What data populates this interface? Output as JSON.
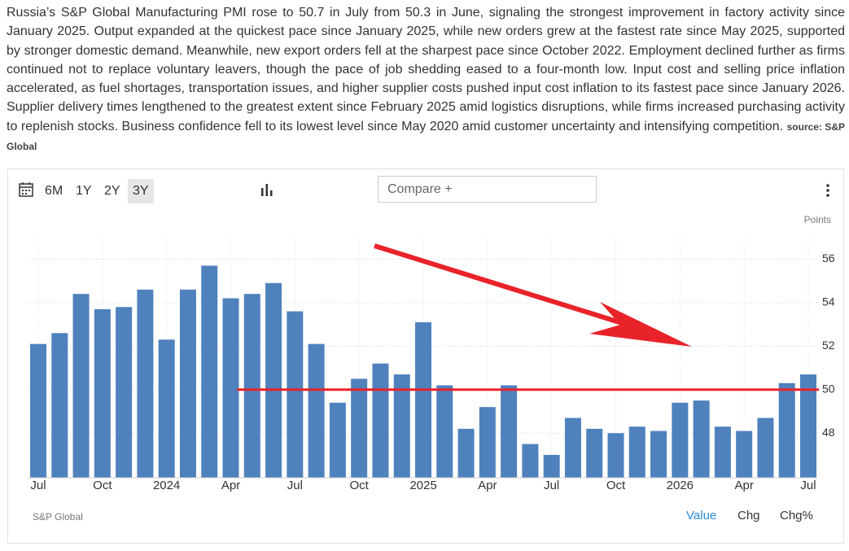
{
  "description": "Russia’s S&P Global Manufacturing PMI rose to 50.7 in July from 50.3 in June, signaling the strongest improvement in factory activity since January 2025. Output expanded at the quickest pace since January 2025, while new orders grew at the fastest rate since May 2025, supported by stronger domestic demand. Meanwhile, new export orders fell at the sharpest pace since October 2022. Employment declined further as firms continued not to replace voluntary leavers, though the pace of job shedding eased to a four-month low. Input cost and selling price inflation accelerated, as fuel shortages, transportation issues, and higher supplier costs pushed input cost inflation to its fastest pace since January 2026. Supplier delivery times lengthened to the greatest extent since February 2025 amid logistics disruptions, while firms increased purchasing activity to replenish stocks. Business confidence fell to its lowest level since May 2020 amid customer uncertainty and intensifying competition.",
  "source": "source: S&P Global",
  "toolbar": {
    "ranges": [
      "6M",
      "1Y",
      "2Y",
      "3Y"
    ],
    "selected_range": "3Y",
    "compare": "Compare +"
  },
  "chart_data": {
    "type": "bar",
    "y_axis_label": "Points",
    "categories": [
      "Jul",
      null,
      null,
      "Oct",
      null,
      null,
      "2024",
      null,
      null,
      "Apr",
      null,
      null,
      "Jul",
      null,
      null,
      "Oct",
      null,
      null,
      "2025",
      null,
      null,
      "Apr",
      null,
      null,
      "Jul",
      null,
      null,
      "Oct",
      null,
      null,
      "2026",
      null,
      null,
      "Apr",
      null,
      null,
      "Jul"
    ],
    "values": [
      52.1,
      52.6,
      54.4,
      53.7,
      53.8,
      54.6,
      52.3,
      54.6,
      55.7,
      54.2,
      54.4,
      54.9,
      53.6,
      52.1,
      49.4,
      50.5,
      51.2,
      50.7,
      53.1,
      50.2,
      48.2,
      49.2,
      50.2,
      47.5,
      47.0,
      48.7,
      48.2,
      48.0,
      48.3,
      48.1,
      49.4,
      49.5,
      48.3,
      48.1,
      48.7,
      50.3,
      50.7
    ],
    "color": "#4f81bd",
    "ylim": [
      45.95,
      56.95
    ],
    "yticks": [
      48,
      50,
      52,
      54,
      56
    ],
    "grid": true,
    "reference_line": 50,
    "reference_color": "#e8232a"
  },
  "footer": {
    "source": "S&P Global",
    "tabs": [
      "Value",
      "Chg",
      "Chg%"
    ],
    "active_tab": "Value"
  }
}
